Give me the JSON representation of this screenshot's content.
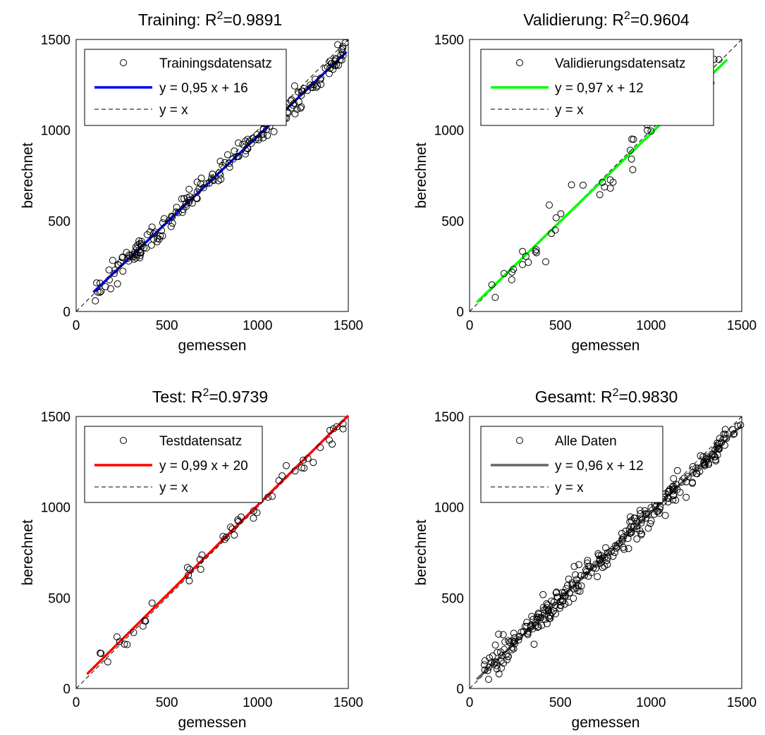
{
  "chart_data": [
    {
      "type": "scatter",
      "title": "Training: R²=0.9891",
      "title_parts": {
        "prefix": "Training: R",
        "sup": "2",
        "suffix": "=0.9891"
      },
      "xlabel": "gemessen",
      "ylabel": "berechnet",
      "xlim": [
        0,
        1500
      ],
      "ylim": [
        0,
        1500
      ],
      "xticks": [
        "0",
        "500",
        "1000",
        "1500"
      ],
      "yticks": [
        "0",
        "500",
        "1000",
        "1500"
      ],
      "legend": [
        "Trainingsdatensatz",
        "y = 0,95 x + 16",
        "y = x"
      ],
      "legend_position": "top-left",
      "fit": {
        "slope": 0.95,
        "intercept": 16,
        "x_range": [
          95,
          1490
        ],
        "color": "#0000ff"
      },
      "marker_color": "#000000",
      "n_points": 200,
      "scatter_sd": 32,
      "x_range": [
        95,
        1490
      ]
    },
    {
      "type": "scatter",
      "title": "Validierung: R²=0.9604",
      "title_parts": {
        "prefix": "Validierung: R",
        "sup": "2",
        "suffix": "=0.9604"
      },
      "xlabel": "gemessen",
      "ylabel": "berechnet",
      "xlim": [
        0,
        1500
      ],
      "ylim": [
        0,
        1500
      ],
      "xticks": [
        "0",
        "500",
        "1000",
        "1500"
      ],
      "yticks": [
        "0",
        "500",
        "1000",
        "1500"
      ],
      "legend": [
        "Validierungsdatensatz",
        "y = 0,97 x + 12",
        "y = x"
      ],
      "legend_position": "top-left",
      "fit": {
        "slope": 0.97,
        "intercept": 12,
        "x_range": [
          40,
          1420
        ],
        "color": "#00ff00"
      },
      "marker_color": "#000000",
      "n_points": 50,
      "scatter_sd": 55,
      "x_range": [
        120,
        1420
      ]
    },
    {
      "type": "scatter",
      "title": "Test: R²=0.9739",
      "title_parts": {
        "prefix": "Test: R",
        "sup": "2",
        "suffix": "=0.9739"
      },
      "xlabel": "gemessen",
      "ylabel": "berechnet",
      "xlim": [
        0,
        1500
      ],
      "ylim": [
        0,
        1500
      ],
      "xticks": [
        "0",
        "500",
        "1000",
        "1500"
      ],
      "yticks": [
        "0",
        "500",
        "1000",
        "1500"
      ],
      "legend": [
        "Testdatensatz",
        "y = 0,99 x + 20",
        "y = x"
      ],
      "legend_position": "top-left",
      "fit": {
        "slope": 0.99,
        "intercept": 20,
        "x_range": [
          60,
          1500
        ],
        "color": "#ff0000"
      },
      "marker_color": "#000000",
      "n_points": 50,
      "scatter_sd": 45,
      "x_range": [
        130,
        1490
      ]
    },
    {
      "type": "scatter",
      "title": "Gesamt: R²=0.9830",
      "title_parts": {
        "prefix": "Gesamt: R",
        "sup": "2",
        "suffix": "=0.9830"
      },
      "xlabel": "gemessen",
      "ylabel": "berechnet",
      "xlim": [
        0,
        1500
      ],
      "ylim": [
        0,
        1500
      ],
      "xticks": [
        "0",
        "500",
        "1000",
        "1500"
      ],
      "yticks": [
        "0",
        "500",
        "1000",
        "1500"
      ],
      "legend": [
        "Alle Daten",
        "y = 0,96 x + 12",
        "y = x"
      ],
      "legend_position": "top-left",
      "fit": {
        "slope": 0.96,
        "intercept": 12,
        "x_range": [
          40,
          1500
        ],
        "color": "#666666"
      },
      "marker_color": "#000000",
      "n_points": 300,
      "scatter_sd": 40,
      "x_range": [
        80,
        1495
      ]
    }
  ]
}
